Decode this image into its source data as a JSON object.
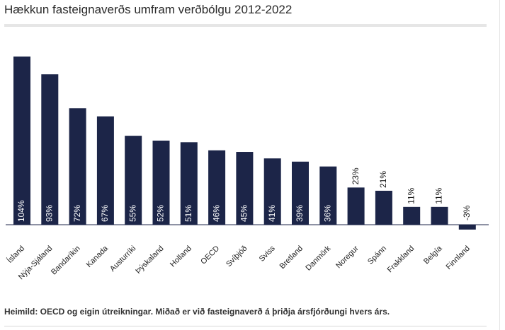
{
  "title": "Hækkun fasteignaverðs umfram verðbólgu 2012-2022",
  "source": "Heimild: OECD og eigin útreikningar. Miðað er við fasteignaverð á þriðja ársfjórðungi hvers árs.",
  "colors": {
    "bar": "#1c2548",
    "label_inside": "#ffffff",
    "label_outside": "#1a1a1a",
    "axis": "#1c2548"
  },
  "chart_data": {
    "type": "bar",
    "title": "Hækkun fasteignaverðs umfram verðbólgu 2012-2022",
    "xlabel": "",
    "ylabel": "",
    "grid": false,
    "categories": [
      "Ísland",
      "Nýja-Sjáland",
      "Bandaríkin",
      "Kanada",
      "Austurríki",
      "Þýskaland",
      "Holland",
      "OECD",
      "Svíþjóð",
      "Sviss",
      "Bretland",
      "Danmörk",
      "Noregur",
      "Spánn",
      "Frakkland",
      "Belgía",
      "Finnland"
    ],
    "values": [
      104,
      93,
      72,
      67,
      55,
      52,
      51,
      46,
      45,
      41,
      39,
      36,
      23,
      21,
      11,
      11,
      -3
    ],
    "data_labels": [
      "104%",
      "93%",
      "72%",
      "67%",
      "55%",
      "52%",
      "51%",
      "46%",
      "45%",
      "41%",
      "39%",
      "36%",
      "23%",
      "21%",
      "11%",
      "11%",
      "-3%"
    ]
  }
}
